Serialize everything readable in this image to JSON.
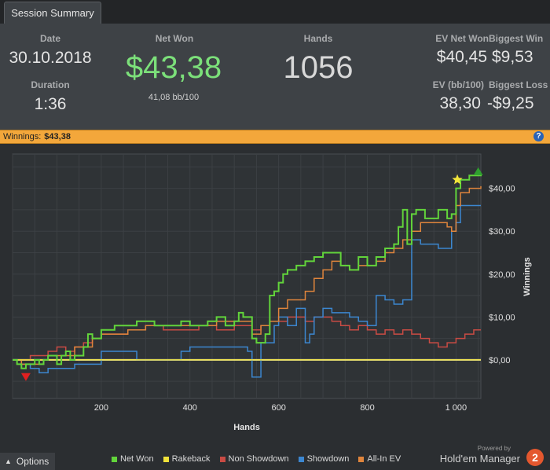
{
  "tab": {
    "label": "Session Summary"
  },
  "summary": {
    "date_label": "Date",
    "date": "30.10.2018",
    "duration_label": "Duration",
    "duration": "1:36",
    "net_won_label": "Net Won",
    "net_won": "$43,38",
    "bb100": "41,08 bb/100",
    "hands_label": "Hands",
    "hands": "1056",
    "ev_net_label": "EV Net Won",
    "ev_net": "$40,45",
    "biggest_win_label": "Biggest Win",
    "biggest_win": "$9,53",
    "ev_bb_label": "EV (bb/100)",
    "ev_bb": "38,30",
    "biggest_loss_label": "Biggest Loss",
    "biggest_loss": "-$9,25"
  },
  "banner": {
    "label": "Winnings:",
    "value": "$43,38"
  },
  "options_label": "Options",
  "brand": {
    "powered": "Powered by",
    "name": "Hold'em Manager",
    "logo": "2"
  },
  "colors": {
    "net_won": "#62d43b",
    "rakeback": "#f0e23a",
    "non_showdown": "#c94b44",
    "showdown": "#3c87d0",
    "allin_ev": "#e0853c",
    "net_won_text": "#7ce07a"
  },
  "chart_data": {
    "type": "line",
    "xlabel": "Hands",
    "ylabel": "Winnings",
    "xlim": [
      0,
      1056
    ],
    "ylim": [
      -9,
      48
    ],
    "x_ticks": [
      200,
      400,
      600,
      800,
      1000
    ],
    "x_tick_labels": [
      "200",
      "400",
      "600",
      "800",
      "1 000"
    ],
    "y_ticks": [
      0,
      10,
      20,
      30,
      40
    ],
    "y_tick_labels": [
      "$0,00",
      "$10,00",
      "$20,00",
      "$30,00",
      "$40,00"
    ],
    "legend": "bottom",
    "series": [
      {
        "name": "Net Won",
        "color": "#62d43b",
        "x": [
          0,
          10,
          20,
          30,
          50,
          60,
          70,
          80,
          100,
          110,
          120,
          130,
          140,
          160,
          170,
          180,
          200,
          210,
          230,
          260,
          280,
          300,
          320,
          340,
          380,
          400,
          420,
          440,
          460,
          480,
          500,
          510,
          520,
          540,
          550,
          560,
          570,
          580,
          590,
          600,
          610,
          620,
          640,
          660,
          680,
          700,
          720,
          740,
          760,
          780,
          800,
          820,
          840,
          860,
          870,
          880,
          890,
          900,
          910,
          930,
          960,
          980,
          990,
          1000,
          1010,
          1030,
          1056
        ],
        "y": [
          0,
          -1,
          -2,
          -1,
          0,
          -1,
          0,
          1,
          -1,
          1,
          2,
          0,
          1,
          3,
          6,
          5,
          7,
          7,
          8,
          8,
          9,
          9,
          8,
          8,
          9,
          8,
          8,
          9,
          10,
          8,
          9,
          11,
          10,
          5,
          4,
          4,
          6,
          15,
          16,
          18,
          20,
          21,
          22,
          23,
          24,
          25,
          25,
          22,
          21,
          24,
          22,
          24,
          26,
          27,
          31,
          35,
          27,
          34,
          35,
          33,
          35,
          33,
          34,
          40,
          42,
          43,
          43.4
        ]
      },
      {
        "name": "Rakeback",
        "color": "#f0e23a",
        "x": [
          0,
          1000,
          1056
        ],
        "y": [
          0,
          0,
          0
        ]
      },
      {
        "name": "Non Showdown",
        "color": "#c94b44",
        "x": [
          0,
          20,
          40,
          60,
          80,
          100,
          120,
          140,
          160,
          180,
          200,
          230,
          260,
          300,
          340,
          380,
          420,
          460,
          500,
          540,
          560,
          580,
          600,
          620,
          640,
          660,
          680,
          700,
          720,
          740,
          760,
          780,
          800,
          820,
          840,
          860,
          880,
          900,
          920,
          940,
          960,
          980,
          1000,
          1020,
          1040,
          1056
        ],
        "y": [
          0,
          0,
          1,
          1,
          2,
          3,
          2,
          3,
          4,
          5,
          6,
          6,
          7,
          8,
          7,
          7,
          8,
          7,
          8,
          7,
          8,
          9,
          9,
          10,
          10,
          9,
          10,
          10,
          9,
          8,
          7,
          8,
          7,
          6,
          7,
          6,
          7,
          6,
          5,
          4,
          3,
          4,
          5,
          6,
          7,
          7
        ]
      },
      {
        "name": "Showdown",
        "color": "#3c87d0",
        "x": [
          0,
          20,
          40,
          60,
          80,
          100,
          140,
          180,
          200,
          220,
          260,
          280,
          300,
          360,
          380,
          400,
          440,
          480,
          520,
          530,
          540,
          560,
          590,
          600,
          620,
          640,
          660,
          670,
          680,
          700,
          720,
          740,
          760,
          780,
          800,
          820,
          840,
          860,
          880,
          900,
          920,
          960,
          980,
          990,
          1000,
          1010,
          1056
        ],
        "y": [
          0,
          -1,
          -2,
          -3,
          -2,
          -2,
          -1,
          -1,
          2,
          2,
          2,
          0,
          0,
          0,
          2,
          3,
          3,
          3,
          3,
          2,
          -4,
          4,
          8,
          10,
          8,
          12,
          4,
          6,
          10,
          12,
          11,
          11,
          10,
          9,
          8,
          15,
          14,
          13,
          14,
          28,
          27,
          26,
          26,
          30,
          32,
          36,
          36
        ]
      },
      {
        "name": "All-In EV",
        "color": "#e0853c",
        "x": [
          0,
          20,
          40,
          60,
          80,
          100,
          140,
          180,
          200,
          230,
          260,
          300,
          340,
          380,
          420,
          460,
          500,
          530,
          540,
          560,
          580,
          600,
          620,
          640,
          660,
          680,
          700,
          720,
          740,
          760,
          780,
          800,
          820,
          840,
          860,
          880,
          900,
          920,
          960,
          980,
          990,
          1000,
          1010,
          1030,
          1056
        ],
        "y": [
          0,
          -1,
          -1,
          0,
          1,
          1,
          3,
          5,
          6,
          6,
          7,
          8,
          8,
          8,
          8,
          9,
          9,
          9,
          6,
          8,
          9,
          12,
          14,
          14,
          16,
          19,
          21,
          23,
          22,
          21,
          22,
          22,
          23,
          25,
          26,
          28,
          30,
          32,
          32,
          31,
          30,
          36,
          39,
          40,
          40.5
        ]
      }
    ],
    "markers": [
      {
        "label": "Biggest Loss",
        "kind": "triangle-down",
        "color": "#e02020",
        "x": 30,
        "y": -4
      },
      {
        "label": "Biggest Win",
        "kind": "triangle-up",
        "color": "#2fa02f",
        "x": 1050,
        "y": 44
      },
      {
        "label": "Rakeback",
        "kind": "star",
        "color": "#f3e63a",
        "x": 1003,
        "y": 42
      }
    ]
  }
}
